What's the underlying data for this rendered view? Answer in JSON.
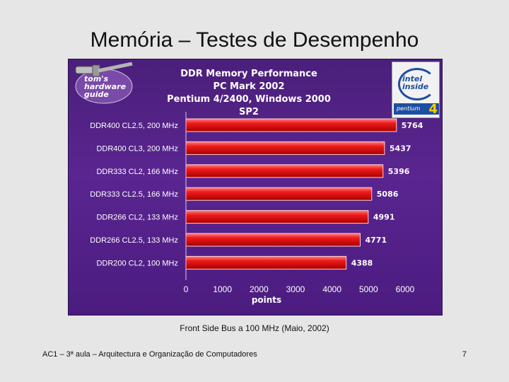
{
  "slide": {
    "title": "Memória – Testes de Desempenho",
    "caption": "Front Side Bus a 100 MHz (Maio, 2002)",
    "footer": "AC1 – 3ª aula – Arquitectura e Organização de Computadores",
    "page_number": "7"
  },
  "logo": {
    "lines": [
      "tom's",
      "hardware",
      "guide"
    ]
  },
  "badge": {
    "brand": "intel inside",
    "product": "pentium",
    "version": "4"
  },
  "colors": {
    "background": "#e6e6e6",
    "chart_bg": "#4f2086",
    "bar": "#e01010",
    "bar_highlight": "#ff6a6a",
    "text_light": "#ffffff"
  },
  "chart_data": {
    "type": "bar",
    "orientation": "horizontal",
    "title_lines": [
      "DDR Memory Performance",
      "PC Mark 2002",
      "Pentium 4/2400, Windows 2000 SP2"
    ],
    "categories": [
      "DDR400 CL2.5, 200 MHz",
      "DDR400 CL3, 200 MHz",
      "DDR333 CL2, 166 MHz",
      "DDR333 CL2.5, 166 MHz",
      "DDR266 CL2, 133 MHz",
      "DDR266 CL2.5, 133 MHz",
      "DDR200 CL2, 100 MHz"
    ],
    "values": [
      5764,
      5437,
      5396,
      5086,
      4991,
      4771,
      4388
    ],
    "value_labels": [
      "5764",
      "5437",
      "5396",
      "5086",
      "4991",
      "4771",
      "4388"
    ],
    "xlabel": "points",
    "xlim": [
      0,
      6000
    ],
    "xticks": [
      0,
      1000,
      2000,
      3000,
      4000,
      5000,
      6000
    ],
    "xtick_labels": [
      "0",
      "1000",
      "2000",
      "3000",
      "4000",
      "5000",
      "6000"
    ],
    "grid": false,
    "legend": "none"
  }
}
